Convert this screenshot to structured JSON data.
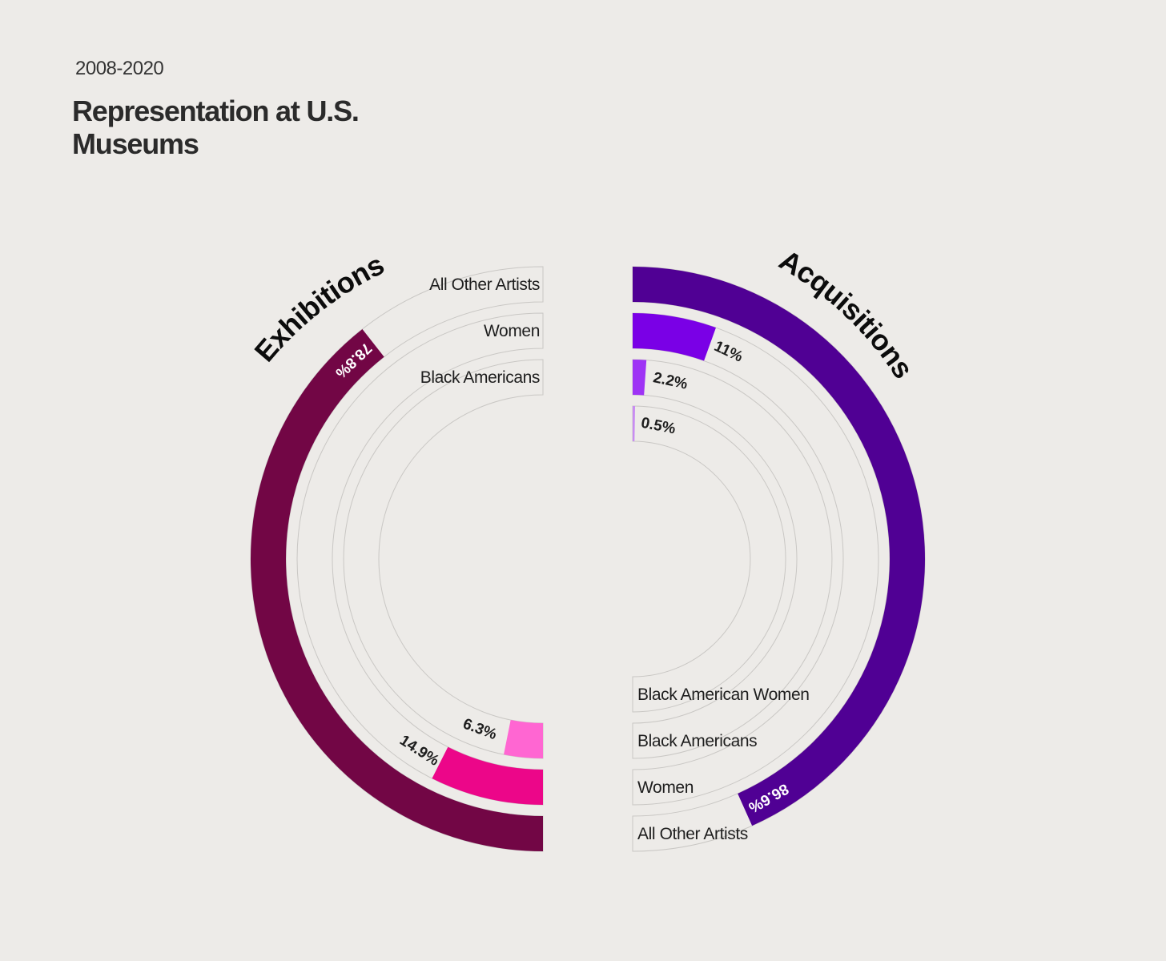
{
  "header": {
    "subtitle": "2008-2020",
    "title": "Representation at U.S. Museums"
  },
  "chart_data": [
    {
      "type": "radial-bar",
      "title": "Exhibitions",
      "color_track": "#c9c7c4",
      "categories": [
        "All Other Artists",
        "Women",
        "Black Americans"
      ],
      "values": [
        78.8,
        14.9,
        6.3
      ],
      "labels": [
        "78.8%",
        "14.9%",
        "6.3%"
      ],
      "colors": [
        "#720645",
        "#ec0689",
        "#ff66d2"
      ]
    },
    {
      "type": "radial-bar",
      "title": "Acquisitions",
      "color_track": "#c9c7c4",
      "categories": [
        "All Other Artists",
        "Women",
        "Black Americans",
        "Black American Women"
      ],
      "values": [
        86.6,
        11,
        2.2,
        0.5
      ],
      "labels": [
        "86.6%",
        "11%",
        "2.2%",
        "0.5%"
      ],
      "colors": [
        "#500094",
        "#7a00e6",
        "#9e33f5",
        "#c88cf2"
      ]
    }
  ]
}
